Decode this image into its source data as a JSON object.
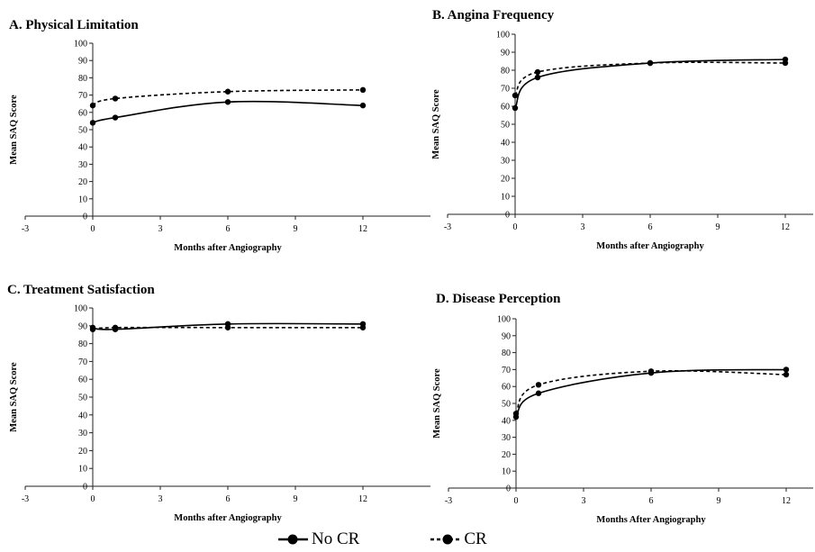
{
  "chart_data": [
    {
      "type": "line",
      "title": "A. Physical Limitation",
      "xlabel": "Months after Angiography",
      "ylabel": "Mean SAQ Score",
      "xlim": [
        -3,
        15
      ],
      "ylim": [
        0,
        100
      ],
      "xticks": [
        -3,
        0,
        3,
        6,
        9,
        12
      ],
      "yticks": [
        0,
        10,
        20,
        30,
        40,
        50,
        60,
        70,
        80,
        90,
        100
      ],
      "x": [
        0,
        1,
        6,
        12
      ],
      "series": [
        {
          "name": "No CR",
          "values": [
            54,
            57,
            66,
            64
          ]
        },
        {
          "name": "CR",
          "values": [
            64,
            68,
            72,
            73
          ]
        }
      ]
    },
    {
      "type": "line",
      "title": "B. Angina Frequency",
      "xlabel": "Months after Angiography",
      "ylabel": "Mean SAQ Score",
      "xlim": [
        -3,
        15
      ],
      "ylim": [
        0,
        100
      ],
      "xticks": [
        -3,
        0,
        3,
        6,
        9,
        12
      ],
      "yticks": [
        0,
        10,
        20,
        30,
        40,
        50,
        60,
        70,
        80,
        90,
        100
      ],
      "x": [
        0,
        1,
        6,
        12
      ],
      "series": [
        {
          "name": "No CR",
          "values": [
            59,
            76,
            84,
            86
          ]
        },
        {
          "name": "CR",
          "values": [
            66,
            79,
            84,
            84
          ]
        }
      ]
    },
    {
      "type": "line",
      "title": "C. Treatment Satisfaction",
      "xlabel": "Months after Angiography",
      "ylabel": "Mean SAQ Score",
      "xlim": [
        -3,
        15
      ],
      "ylim": [
        0,
        100
      ],
      "xticks": [
        -3,
        0,
        3,
        6,
        9,
        12
      ],
      "yticks": [
        0,
        10,
        20,
        30,
        40,
        50,
        60,
        70,
        80,
        90,
        100
      ],
      "x": [
        0,
        1,
        6,
        12
      ],
      "series": [
        {
          "name": "No CR",
          "values": [
            89,
            88,
            91,
            91
          ]
        },
        {
          "name": "CR",
          "values": [
            88,
            89,
            89,
            89
          ]
        }
      ]
    },
    {
      "type": "line",
      "title": "D. Disease Perception",
      "xlabel": "Months After Angiography",
      "ylabel": "Mean SAQ Score",
      "xlim": [
        -3,
        15
      ],
      "ylim": [
        0,
        100
      ],
      "xticks": [
        -3,
        0,
        3,
        6,
        9,
        12
      ],
      "yticks": [
        0,
        10,
        20,
        30,
        40,
        50,
        60,
        70,
        80,
        90,
        100
      ],
      "x": [
        0,
        1,
        6,
        12
      ],
      "series": [
        {
          "name": "No CR",
          "values": [
            42,
            56,
            68,
            70
          ]
        },
        {
          "name": "CR",
          "values": [
            44,
            61,
            69,
            67
          ]
        }
      ]
    }
  ],
  "legend": {
    "items": [
      {
        "label": "No CR",
        "style": "solid"
      },
      {
        "label": "CR",
        "style": "dashed"
      }
    ]
  },
  "colors": {
    "line": "#000000",
    "axis": "#222222",
    "background": "#ffffff"
  }
}
